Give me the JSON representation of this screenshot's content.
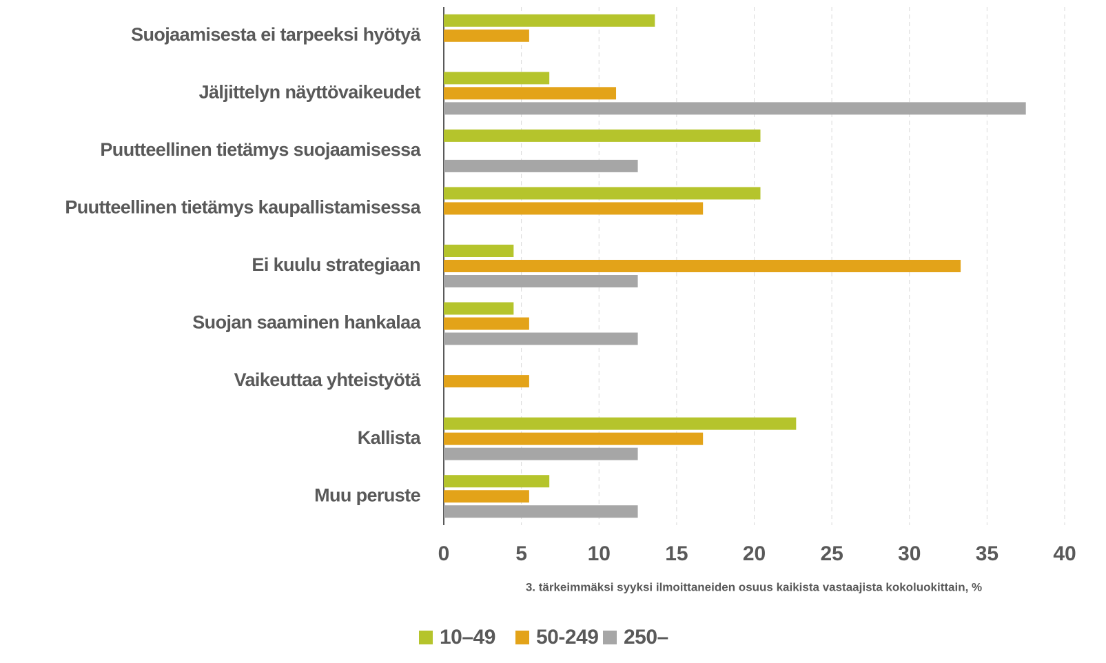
{
  "chart_data": {
    "type": "bar",
    "orientation": "horizontal",
    "x_label": "3. tärkeimmäksi syyksi ilmoittaneiden osuus kaikista vastaajista kokoluokittain, %",
    "categories": [
      "Suojaamisesta ei tarpeeksi hyötyä",
      "Jäljittelyn näyttövaikeudet",
      "Puutteellinen tietämys suojaamisessa",
      "Puutteellinen tietämys kaupallistamisessa",
      "Ei kuulu strategiaan",
      "Suojan saaminen hankalaa",
      "Vaikeuttaa yhteistyötä",
      "Kallista",
      "Muu peruste"
    ],
    "series": [
      {
        "name": "10–49",
        "color": "#b5c42c",
        "values": [
          13.6,
          6.8,
          20.4,
          20.4,
          4.5,
          4.5,
          null,
          22.7,
          6.8
        ]
      },
      {
        "name": "50-249",
        "color": "#e3a319",
        "values": [
          5.5,
          11.1,
          null,
          16.7,
          33.3,
          5.5,
          5.5,
          16.7,
          5.5
        ]
      },
      {
        "name": "250–",
        "color": "#a6a6a6",
        "values": [
          null,
          37.5,
          12.5,
          null,
          12.5,
          12.5,
          null,
          12.5,
          12.5
        ]
      }
    ],
    "xlim": [
      0,
      40
    ],
    "xticks": [
      0,
      5,
      10,
      15,
      20,
      25,
      30,
      35,
      40
    ],
    "grid": true,
    "legend": "bottom"
  }
}
